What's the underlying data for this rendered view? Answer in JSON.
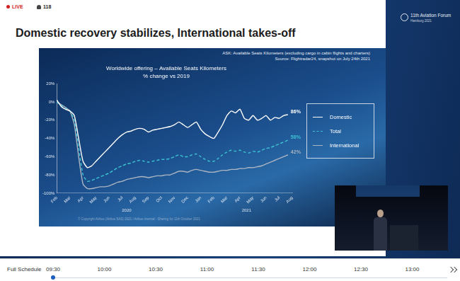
{
  "stream": {
    "status": "LIVE",
    "viewers": 118
  },
  "slide": {
    "title": "Domestic recovery stabilizes, International takes-off",
    "notes": [
      "ASK: Available Seats Kilometers (excluding cargo in cabin flights and charters)",
      "Source: Flightradar24, snapshot on July 24th 2021"
    ],
    "footer": "© Copyright Airbus (Airbus SAS) 2021 / Airbus Internal - Sharing for 11th October 2021",
    "logo": [
      "11th Aviation Forum",
      "Hamburg 2021"
    ]
  },
  "chart_data": {
    "type": "line",
    "title": "Worldwide offering – Available Seats Kilometers",
    "subtitle": "% change vs 2019",
    "categories": [
      "Feb",
      null,
      null,
      "Mar",
      null,
      null,
      "Apr",
      null,
      null,
      "May",
      null,
      null,
      "Jun",
      null,
      null,
      "Jul",
      null,
      null,
      "Aug",
      null,
      null,
      "Sep",
      null,
      null,
      "Oct",
      null,
      null,
      "Nov",
      null,
      null,
      "Dec",
      null,
      null,
      "Jan",
      null,
      null,
      "Feb",
      null,
      null,
      "Mar",
      null,
      null,
      "Apr",
      null,
      null,
      "May",
      null,
      null,
      "Jun",
      null,
      null,
      "Jul",
      null,
      null,
      "Aug"
    ],
    "x_groups": [
      {
        "label": "2020",
        "first": 0,
        "last": 32
      },
      {
        "label": "2021",
        "first": 33,
        "last": 54
      }
    ],
    "series": [
      {
        "name": "Domestic",
        "color": "#ffffff",
        "line_style": "solid",
        "marker": "none",
        "values": [
          2,
          -5,
          -8,
          -10,
          -15,
          -40,
          -65,
          -72,
          -70,
          -65,
          -60,
          -55,
          -50,
          -45,
          -40,
          -36,
          -33,
          -32,
          -30,
          -29,
          -30,
          -33,
          -31,
          -30,
          -29,
          -28,
          -27,
          -25,
          -22,
          -25,
          -28,
          -25,
          -22,
          -30,
          -35,
          -38,
          -40,
          -33,
          -25,
          -15,
          -10,
          -12,
          -8,
          -18,
          -20,
          -15,
          -20,
          -18,
          -15,
          -20,
          -17,
          -18,
          -15,
          -14,
          null
        ]
      },
      {
        "name": "Total",
        "color": "#3cc3d2",
        "line_style": "dashed",
        "marker": "none",
        "values": [
          0,
          -4,
          -7,
          -10,
          -20,
          -50,
          -80,
          -87,
          -86,
          -84,
          -82,
          -80,
          -78,
          -75,
          -72,
          -70,
          -68,
          -67,
          -65,
          -64,
          -65,
          -66,
          -65,
          -64,
          -63,
          -63,
          -62,
          -60,
          -58,
          -60,
          -60,
          -58,
          -57,
          -60,
          -63,
          -65,
          -65,
          -62,
          -58,
          -55,
          -53,
          -54,
          -53,
          -55,
          -56,
          -54,
          -55,
          -53,
          -51,
          -50,
          -48,
          -46,
          -44,
          -42,
          null
        ]
      },
      {
        "name": "International",
        "color": "#aab4c2",
        "line_style": "solid",
        "marker": "none",
        "values": [
          0,
          -3,
          -6,
          -10,
          -25,
          -60,
          -90,
          -95,
          -95,
          -94,
          -93,
          -93,
          -92,
          -90,
          -88,
          -87,
          -85,
          -84,
          -83,
          -82,
          -82,
          -83,
          -82,
          -81,
          -81,
          -80,
          -80,
          -78,
          -76,
          -76,
          -77,
          -75,
          -74,
          -75,
          -76,
          -77,
          -77,
          -76,
          -75,
          -75,
          -74,
          -74,
          -73,
          -73,
          -72,
          -72,
          -71,
          -70,
          -68,
          -66,
          -64,
          -62,
          -60,
          -58,
          null
        ]
      }
    ],
    "annotations": [
      {
        "series": "Domestic",
        "text": "86%"
      },
      {
        "series": "Total",
        "text": "58%"
      },
      {
        "series": "International",
        "text": "42%"
      }
    ],
    "ylim": [
      -100,
      20
    ],
    "yticks": [
      {
        "value": -100,
        "label": "-100%"
      },
      {
        "value": -80,
        "label": "-80%"
      },
      {
        "value": -60,
        "label": "-60%"
      },
      {
        "value": -40,
        "label": "-40%"
      },
      {
        "value": -20,
        "label": "-20%"
      },
      {
        "value": 0,
        "label": "0%"
      },
      {
        "value": 20,
        "label": "20%"
      }
    ],
    "grid": false,
    "legend": "right"
  },
  "schedule": {
    "label": "Full Schedule",
    "times": [
      "09:30",
      "10:00",
      "10:30",
      "11:00",
      "11:30",
      "12:00",
      "12:30",
      "13:00"
    ]
  }
}
